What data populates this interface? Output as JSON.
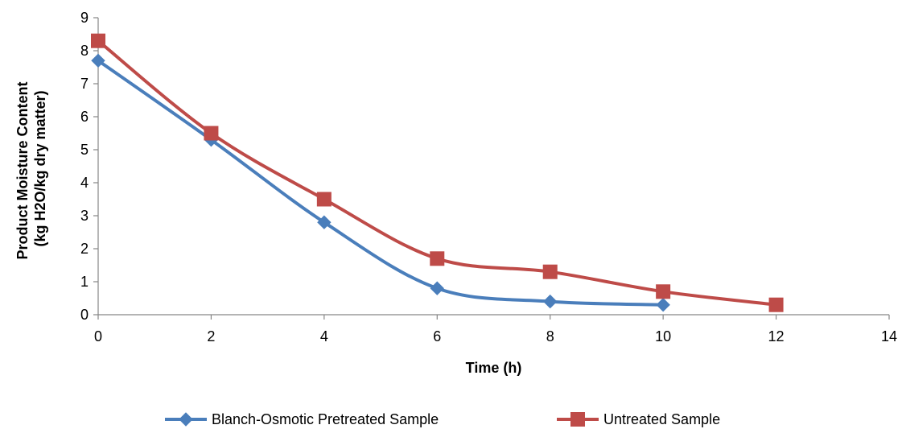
{
  "chart_data": {
    "type": "line",
    "xlabel": "Time (h)",
    "ylabel": [
      "Product Moisture Content",
      "(kg H2O/kg dry matter)"
    ],
    "xlim": [
      0,
      14
    ],
    "ylim": [
      0,
      9
    ],
    "x_ticks": [
      "0",
      "2",
      "4",
      "6",
      "8",
      "10",
      "12",
      "14"
    ],
    "y_ticks": [
      "0",
      "1",
      "2",
      "3",
      "4",
      "5",
      "6",
      "7",
      "8",
      "9"
    ],
    "grid": false,
    "smooth": true,
    "legend_position": "bottom",
    "series": [
      {
        "name": "Blanch-Osmotic Pretreated Sample",
        "color": "#4a7ebb",
        "marker": "diamond",
        "x": [
          0,
          2,
          4,
          6,
          8,
          10
        ],
        "y": [
          7.7,
          5.3,
          2.8,
          0.8,
          0.4,
          0.3
        ]
      },
      {
        "name": "Untreated Sample",
        "color": "#be4b48",
        "marker": "square",
        "x": [
          0,
          2,
          4,
          6,
          8,
          10,
          12
        ],
        "y": [
          8.3,
          5.5,
          3.5,
          1.7,
          1.3,
          0.7,
          0.3
        ]
      }
    ]
  }
}
